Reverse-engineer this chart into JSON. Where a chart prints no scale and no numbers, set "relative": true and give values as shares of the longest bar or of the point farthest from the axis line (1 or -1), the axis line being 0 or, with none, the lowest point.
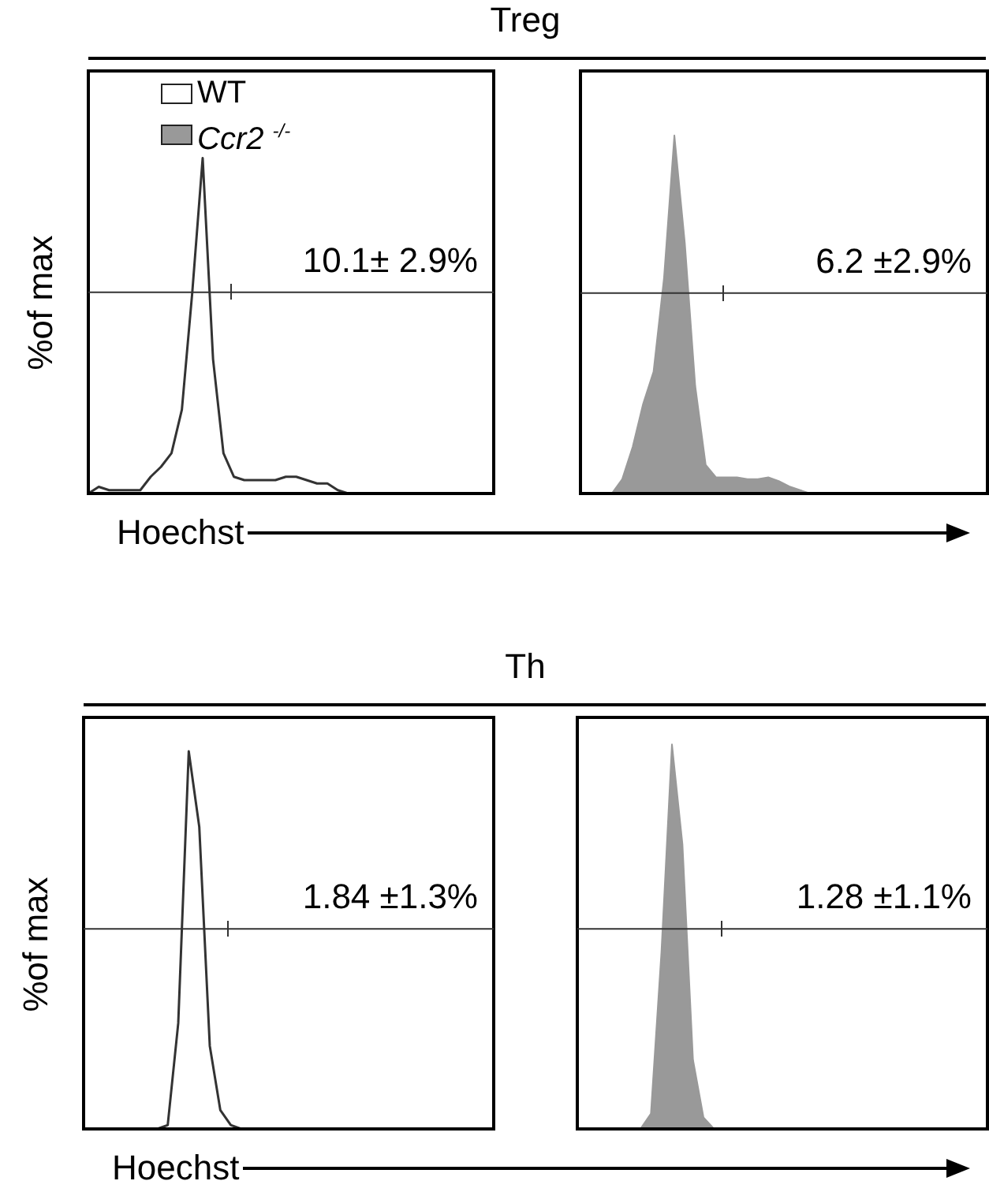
{
  "chart_data": [
    {
      "type": "line",
      "title": "Treg",
      "xlabel": "Hoechst",
      "ylabel": "%of max",
      "relative": true,
      "tick_labels": false,
      "legend": "top left",
      "marker": "none",
      "categories": [
        null,
        null,
        null,
        null,
        null,
        null,
        null,
        null,
        null,
        null,
        null,
        null,
        null,
        null,
        null,
        null,
        null,
        null,
        null,
        null,
        null,
        null,
        null,
        null,
        null,
        null,
        null,
        null,
        null,
        null,
        null,
        null,
        null,
        null,
        null,
        null,
        null,
        null,
        null,
        null
      ],
      "series": [
        {
          "name": "WT",
          "color": "#333333",
          "values": [
            0,
            0.02,
            0.01,
            0.01,
            0.01,
            0.01,
            0.05,
            0.08,
            0.12,
            0.25,
            0.6,
            1,
            0.4,
            0.12,
            0.05,
            0.04,
            0.04,
            0.04,
            0.04,
            0.05,
            0.05,
            0.04,
            0.03,
            0.03,
            0.01,
            0,
            0,
            0,
            0,
            0,
            0,
            0,
            0,
            0,
            0,
            0,
            0,
            0,
            0,
            0
          ]
        }
      ],
      "ref_lines": [
        {
          "axis": "y",
          "value": 0.6,
          "color": "#333333"
        }
      ],
      "annotations": [
        "10.1± 2.9%"
      ]
    },
    {
      "type": "area",
      "relative": true,
      "tick_labels": false,
      "marker": "none",
      "categories": [
        null,
        null,
        null,
        null,
        null,
        null,
        null,
        null,
        null,
        null,
        null,
        null,
        null,
        null,
        null,
        null,
        null,
        null,
        null,
        null,
        null,
        null,
        null,
        null,
        null,
        null,
        null,
        null,
        null,
        null,
        null,
        null,
        null,
        null,
        null,
        null,
        null,
        null,
        null,
        null
      ],
      "series": [
        {
          "name": "Ccr2 $^{-/-}$",
          "color": "#999999",
          "values": [
            0,
            0,
            0,
            0,
            0.04,
            0.13,
            0.25,
            0.34,
            0.6,
            1,
            0.7,
            0.3,
            0.08,
            0.045,
            0.045,
            0.045,
            0.04,
            0.04,
            0.045,
            0.035,
            0.02,
            0.01,
            0,
            0,
            0,
            0,
            0,
            0,
            0,
            0,
            0,
            0,
            0,
            0,
            0,
            0,
            0,
            0,
            0,
            0
          ]
        }
      ],
      "ref_lines": [
        {
          "axis": "y",
          "value": 0.56,
          "color": "#333333"
        }
      ],
      "annotations": [
        "6.2 ±2.9%"
      ]
    },
    {
      "type": "line",
      "title": "Th",
      "xlabel": "Hoechst",
      "ylabel": "%of max",
      "relative": true,
      "tick_labels": false,
      "marker": "none",
      "categories": [
        null,
        null,
        null,
        null,
        null,
        null,
        null,
        null,
        null,
        null,
        null,
        null,
        null,
        null,
        null,
        null,
        null,
        null,
        null,
        null,
        null,
        null,
        null,
        null,
        null,
        null,
        null,
        null,
        null,
        null,
        null,
        null,
        null,
        null,
        null,
        null,
        null,
        null,
        null,
        null
      ],
      "series": [
        {
          "color": "#333333",
          "values": [
            0,
            0,
            0,
            0,
            0,
            0,
            0,
            0,
            0.01,
            0.28,
            1,
            0.8,
            0.22,
            0.05,
            0.01,
            0,
            0,
            0,
            0,
            0,
            0,
            0,
            0,
            0,
            0,
            0,
            0,
            0,
            0,
            0,
            0,
            0,
            0,
            0,
            0,
            0,
            0,
            0,
            0,
            0
          ]
        }
      ],
      "ref_lines": [
        {
          "axis": "y",
          "value": 0.53,
          "color": "#333333"
        }
      ],
      "annotations": [
        "1.84 ±1.3%"
      ]
    },
    {
      "type": "area",
      "relative": true,
      "tick_labels": false,
      "marker": "none",
      "categories": [
        null,
        null,
        null,
        null,
        null,
        null,
        null,
        null,
        null,
        null,
        null,
        null,
        null,
        null,
        null,
        null,
        null,
        null,
        null,
        null,
        null,
        null,
        null,
        null,
        null,
        null,
        null,
        null,
        null,
        null,
        null,
        null,
        null,
        null,
        null,
        null,
        null,
        null,
        null,
        null
      ],
      "series": [
        {
          "color": "#999999",
          "values": [
            0,
            0,
            0,
            0,
            0,
            0,
            0,
            0.04,
            0.46,
            1,
            0.74,
            0.18,
            0.03,
            0,
            0,
            0,
            0,
            0,
            0,
            0,
            0,
            0,
            0,
            0,
            0,
            0,
            0,
            0,
            0,
            0,
            0,
            0,
            0,
            0,
            0,
            0,
            0,
            0,
            0,
            0
          ]
        }
      ],
      "ref_lines": [
        {
          "axis": "y",
          "value": 0.52,
          "color": "#333333"
        }
      ],
      "annotations": [
        "1.28 ±1.1%"
      ]
    }
  ]
}
